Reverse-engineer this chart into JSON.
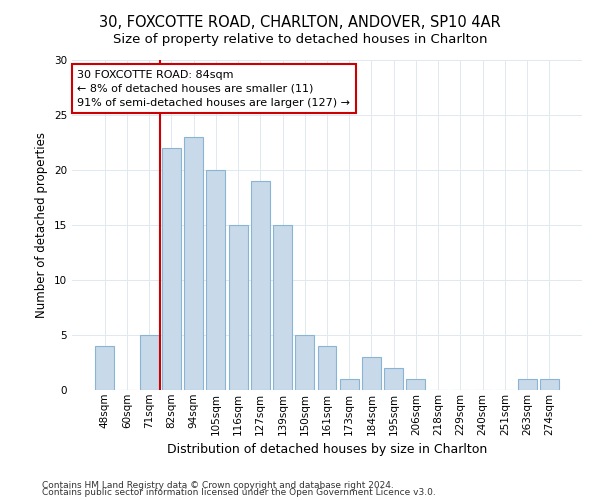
{
  "title1": "30, FOXCOTTE ROAD, CHARLTON, ANDOVER, SP10 4AR",
  "title2": "Size of property relative to detached houses in Charlton",
  "xlabel": "Distribution of detached houses by size in Charlton",
  "ylabel": "Number of detached properties",
  "categories": [
    "48sqm",
    "60sqm",
    "71sqm",
    "82sqm",
    "94sqm",
    "105sqm",
    "116sqm",
    "127sqm",
    "139sqm",
    "150sqm",
    "161sqm",
    "173sqm",
    "184sqm",
    "195sqm",
    "206sqm",
    "218sqm",
    "229sqm",
    "240sqm",
    "251sqm",
    "263sqm",
    "274sqm"
  ],
  "values": [
    4,
    0,
    5,
    22,
    23,
    20,
    15,
    19,
    15,
    5,
    4,
    1,
    3,
    2,
    1,
    0,
    0,
    0,
    0,
    1,
    1
  ],
  "bar_color": "#c8daea",
  "bar_edgecolor": "#8ab4d4",
  "redline_x": 2.5,
  "annotation_title": "30 FOXCOTTE ROAD: 84sqm",
  "annotation_line1": "← 8% of detached houses are smaller (11)",
  "annotation_line2": "91% of semi-detached houses are larger (127) →",
  "annotation_box_facecolor": "#ffffff",
  "annotation_box_edgecolor": "#cc0000",
  "redline_color": "#cc0000",
  "ylim": [
    0,
    30
  ],
  "footnote1": "Contains HM Land Registry data © Crown copyright and database right 2024.",
  "footnote2": "Contains public sector information licensed under the Open Government Licence v3.0.",
  "bg_color": "#ffffff",
  "plot_bg_color": "#ffffff",
  "grid_color": "#e0e8f0",
  "title1_fontsize": 10.5,
  "title2_fontsize": 9.5,
  "xlabel_fontsize": 9,
  "ylabel_fontsize": 8.5,
  "tick_fontsize": 7.5,
  "annot_fontsize": 8,
  "footnote_fontsize": 6.5
}
